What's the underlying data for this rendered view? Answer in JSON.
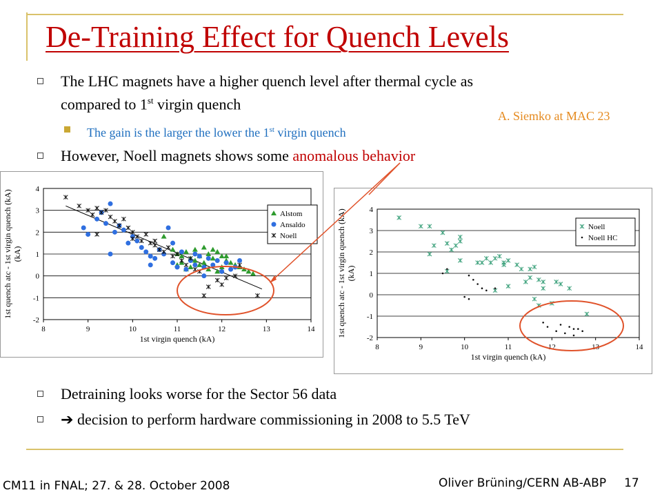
{
  "slide": {
    "title": "De-Training Effect for Quench Levels",
    "bullets": [
      {
        "text_before": "The LHC magnets have a higher quench level after thermal cycle as",
        "line2_before": "compared to 1",
        "line2_sup": "st",
        "line2_after": " virgin quench"
      },
      {
        "sub_before": "The gain is the larger the lower the 1",
        "sub_sup": "st",
        "sub_after": " virgin quench"
      },
      {
        "text_before": "However, Noell magnets shows some ",
        "text_highlight": "anomalous behavior"
      },
      {
        "text": "Detraining looks worse for the Sector 56 data"
      },
      {
        "arrow": "➔",
        "text": " decision to perform hardware commissioning in 2008 to 5.5 TeV"
      }
    ],
    "reference": "A. Siemko at MAC 23",
    "footer_left": "CM11 in FNAL; 27. & 28. October 2008",
    "footer_author": "Oliver Brüning/CERN AB-ABP",
    "page_number": "17"
  },
  "colors": {
    "title": "#c00000",
    "highlight": "#c00000",
    "sub_bullet": "#1f6fbf",
    "reference": "#e58a1f",
    "rule": "#d9c26a",
    "alstom": "#2e9b2e",
    "ansaldo": "#2f6fe0",
    "noell": "#111111",
    "noell_right": "#3aa07a",
    "circle": "#e0522a"
  },
  "chart_data": [
    {
      "type": "scatter",
      "xlabel": "1st virgin quench (kA)",
      "ylabel": "1st quench atc - 1st virgin quench (kA)",
      "xlim": [
        8,
        14
      ],
      "ylim": [
        -2,
        4
      ],
      "xticks": [
        "8",
        "9",
        "10",
        "11",
        "12",
        "13",
        "14"
      ],
      "yticks": [
        "4",
        "3",
        "2",
        "1",
        "0",
        "-1",
        "-2"
      ],
      "legend_position": "right",
      "series": [
        {
          "name": "Alstom",
          "marker": "triangle",
          "points": [
            [
              10.7,
              1.8
            ],
            [
              10.9,
              1.2
            ],
            [
              11.0,
              1.0
            ],
            [
              11.1,
              0.9
            ],
            [
              11.2,
              1.1
            ],
            [
              11.3,
              0.8
            ],
            [
              11.4,
              1.2
            ],
            [
              11.5,
              0.9
            ],
            [
              11.6,
              1.3
            ],
            [
              11.7,
              1.0
            ],
            [
              11.8,
              0.8
            ],
            [
              11.9,
              1.1
            ],
            [
              12.0,
              0.9
            ],
            [
              12.1,
              0.7
            ],
            [
              12.2,
              0.6
            ],
            [
              12.3,
              0.5
            ],
            [
              12.4,
              0.4
            ],
            [
              12.5,
              0.3
            ],
            [
              12.6,
              0.2
            ],
            [
              12.7,
              0.1
            ],
            [
              11.3,
              0.4
            ],
            [
              11.5,
              0.5
            ],
            [
              11.7,
              0.3
            ],
            [
              11.9,
              0.2
            ],
            [
              12.0,
              0.4
            ],
            [
              11.1,
              0.6
            ],
            [
              11.4,
              0.7
            ],
            [
              11.6,
              0.6
            ],
            [
              11.8,
              1.2
            ],
            [
              12.1,
              0.9
            ],
            [
              11.2,
              0.3
            ],
            [
              11.0,
              0.5
            ]
          ]
        },
        {
          "name": "Ansaldo",
          "marker": "circle",
          "points": [
            [
              8.9,
              2.2
            ],
            [
              9.0,
              1.9
            ],
            [
              9.2,
              2.6
            ],
            [
              9.3,
              2.9
            ],
            [
              9.4,
              2.4
            ],
            [
              9.5,
              3.3
            ],
            [
              9.6,
              2.0
            ],
            [
              9.7,
              2.3
            ],
            [
              9.8,
              2.1
            ],
            [
              9.9,
              1.5
            ],
            [
              10.0,
              1.8
            ],
            [
              10.1,
              1.6
            ],
            [
              10.2,
              1.3
            ],
            [
              10.3,
              1.1
            ],
            [
              10.4,
              0.9
            ],
            [
              10.5,
              0.8
            ],
            [
              10.6,
              1.2
            ],
            [
              10.7,
              1.0
            ],
            [
              10.8,
              2.2
            ],
            [
              10.9,
              0.6
            ],
            [
              11.0,
              0.4
            ],
            [
              11.1,
              1.1
            ],
            [
              11.2,
              0.3
            ],
            [
              11.3,
              0.7
            ],
            [
              11.4,
              0.5
            ],
            [
              11.5,
              0.9
            ],
            [
              11.6,
              0.4
            ],
            [
              11.7,
              0.8
            ],
            [
              11.8,
              0.5
            ],
            [
              11.9,
              0.7
            ],
            [
              12.0,
              0.2
            ],
            [
              12.1,
              0.6
            ],
            [
              12.2,
              0.3
            ],
            [
              12.3,
              0.4
            ],
            [
              9.5,
              1.0
            ],
            [
              10.4,
              0.5
            ],
            [
              10.9,
              1.5
            ],
            [
              11.4,
              1.0
            ],
            [
              11.6,
              0.0
            ],
            [
              12.4,
              0.7
            ]
          ]
        },
        {
          "name": "Noell",
          "marker": "cross",
          "points": [
            [
              8.5,
              3.6
            ],
            [
              8.8,
              3.2
            ],
            [
              9.0,
              3.0
            ],
            [
              9.1,
              2.8
            ],
            [
              9.2,
              3.1
            ],
            [
              9.3,
              2.9
            ],
            [
              9.4,
              3.0
            ],
            [
              9.5,
              2.7
            ],
            [
              9.6,
              2.5
            ],
            [
              9.7,
              2.3
            ],
            [
              9.8,
              2.6
            ],
            [
              9.9,
              2.2
            ],
            [
              10.0,
              2.0
            ],
            [
              10.1,
              1.8
            ],
            [
              10.2,
              1.6
            ],
            [
              10.3,
              1.9
            ],
            [
              10.4,
              1.5
            ],
            [
              10.5,
              1.4
            ],
            [
              10.6,
              1.2
            ],
            [
              10.7,
              1.1
            ],
            [
              10.8,
              1.3
            ],
            [
              10.9,
              0.9
            ],
            [
              11.0,
              1.0
            ],
            [
              11.1,
              0.7
            ],
            [
              11.2,
              0.5
            ],
            [
              11.3,
              0.8
            ],
            [
              11.4,
              0.3
            ],
            [
              11.5,
              0.2
            ],
            [
              11.6,
              -0.9
            ],
            [
              11.7,
              -0.5
            ],
            [
              11.9,
              -0.2
            ],
            [
              12.0,
              -0.4
            ],
            [
              12.1,
              -0.1
            ],
            [
              12.3,
              0.0
            ],
            [
              12.4,
              0.5
            ],
            [
              12.8,
              -0.9
            ],
            [
              9.2,
              1.9
            ],
            [
              10.0,
              1.7
            ],
            [
              10.5,
              1.6
            ]
          ]
        }
      ],
      "trendline": [
        [
          8.5,
          3.2
        ],
        [
          12.9,
          -0.6
        ]
      ]
    },
    {
      "type": "scatter",
      "xlabel": "1st virgin quench (kA)",
      "ylabel": "1st quench atc - 1st virgin quench (kA)",
      "xlim": [
        8,
        14
      ],
      "ylim": [
        -2,
        4
      ],
      "xticks": [
        "8",
        "9",
        "10",
        "11",
        "12",
        "13",
        "14"
      ],
      "yticks": [
        "4",
        "3",
        "2",
        "1",
        "0",
        "-1",
        "-2"
      ],
      "legend_position": "right",
      "series": [
        {
          "name": "Noell",
          "marker": "cross",
          "points": [
            [
              8.5,
              3.6
            ],
            [
              9.0,
              3.2
            ],
            [
              9.2,
              3.2
            ],
            [
              9.3,
              2.3
            ],
            [
              9.2,
              1.9
            ],
            [
              9.5,
              2.9
            ],
            [
              9.6,
              2.4
            ],
            [
              9.7,
              2.1
            ],
            [
              9.8,
              2.3
            ],
            [
              9.9,
              2.5
            ],
            [
              9.9,
              2.7
            ],
            [
              9.6,
              1.1
            ],
            [
              9.9,
              1.6
            ],
            [
              10.3,
              1.5
            ],
            [
              10.4,
              1.5
            ],
            [
              10.6,
              1.5
            ],
            [
              10.5,
              1.7
            ],
            [
              10.7,
              1.7
            ],
            [
              10.9,
              1.5
            ],
            [
              10.9,
              1.4
            ],
            [
              11.0,
              1.6
            ],
            [
              10.8,
              1.8
            ],
            [
              10.7,
              0.2
            ],
            [
              11.0,
              0.4
            ],
            [
              11.2,
              1.4
            ],
            [
              11.3,
              1.2
            ],
            [
              11.5,
              1.2
            ],
            [
              11.6,
              1.3
            ],
            [
              11.4,
              0.6
            ],
            [
              11.5,
              0.8
            ],
            [
              11.7,
              0.7
            ],
            [
              11.8,
              0.6
            ],
            [
              11.8,
              0.3
            ],
            [
              11.6,
              -0.2
            ],
            [
              11.7,
              -0.5
            ],
            [
              12.1,
              0.6
            ],
            [
              12.2,
              0.5
            ],
            [
              12.4,
              0.3
            ],
            [
              12.0,
              -0.4
            ],
            [
              12.8,
              -0.9
            ]
          ]
        },
        {
          "name": "Noell HC",
          "marker": "dot",
          "points": [
            [
              9.5,
              1.0
            ],
            [
              9.6,
              1.2
            ],
            [
              10.1,
              0.9
            ],
            [
              10.2,
              0.7
            ],
            [
              10.3,
              0.5
            ],
            [
              10.4,
              0.3
            ],
            [
              10.0,
              -0.1
            ],
            [
              10.1,
              -0.2
            ],
            [
              10.5,
              0.2
            ],
            [
              10.7,
              0.3
            ],
            [
              11.8,
              -1.3
            ],
            [
              11.9,
              -1.5
            ],
            [
              12.1,
              -1.7
            ],
            [
              12.2,
              -1.4
            ],
            [
              12.3,
              -1.8
            ],
            [
              12.4,
              -1.5
            ],
            [
              12.5,
              -1.6
            ],
            [
              12.6,
              -1.6
            ],
            [
              12.7,
              -1.7
            ],
            [
              12.5,
              -1.9
            ]
          ]
        }
      ]
    }
  ]
}
